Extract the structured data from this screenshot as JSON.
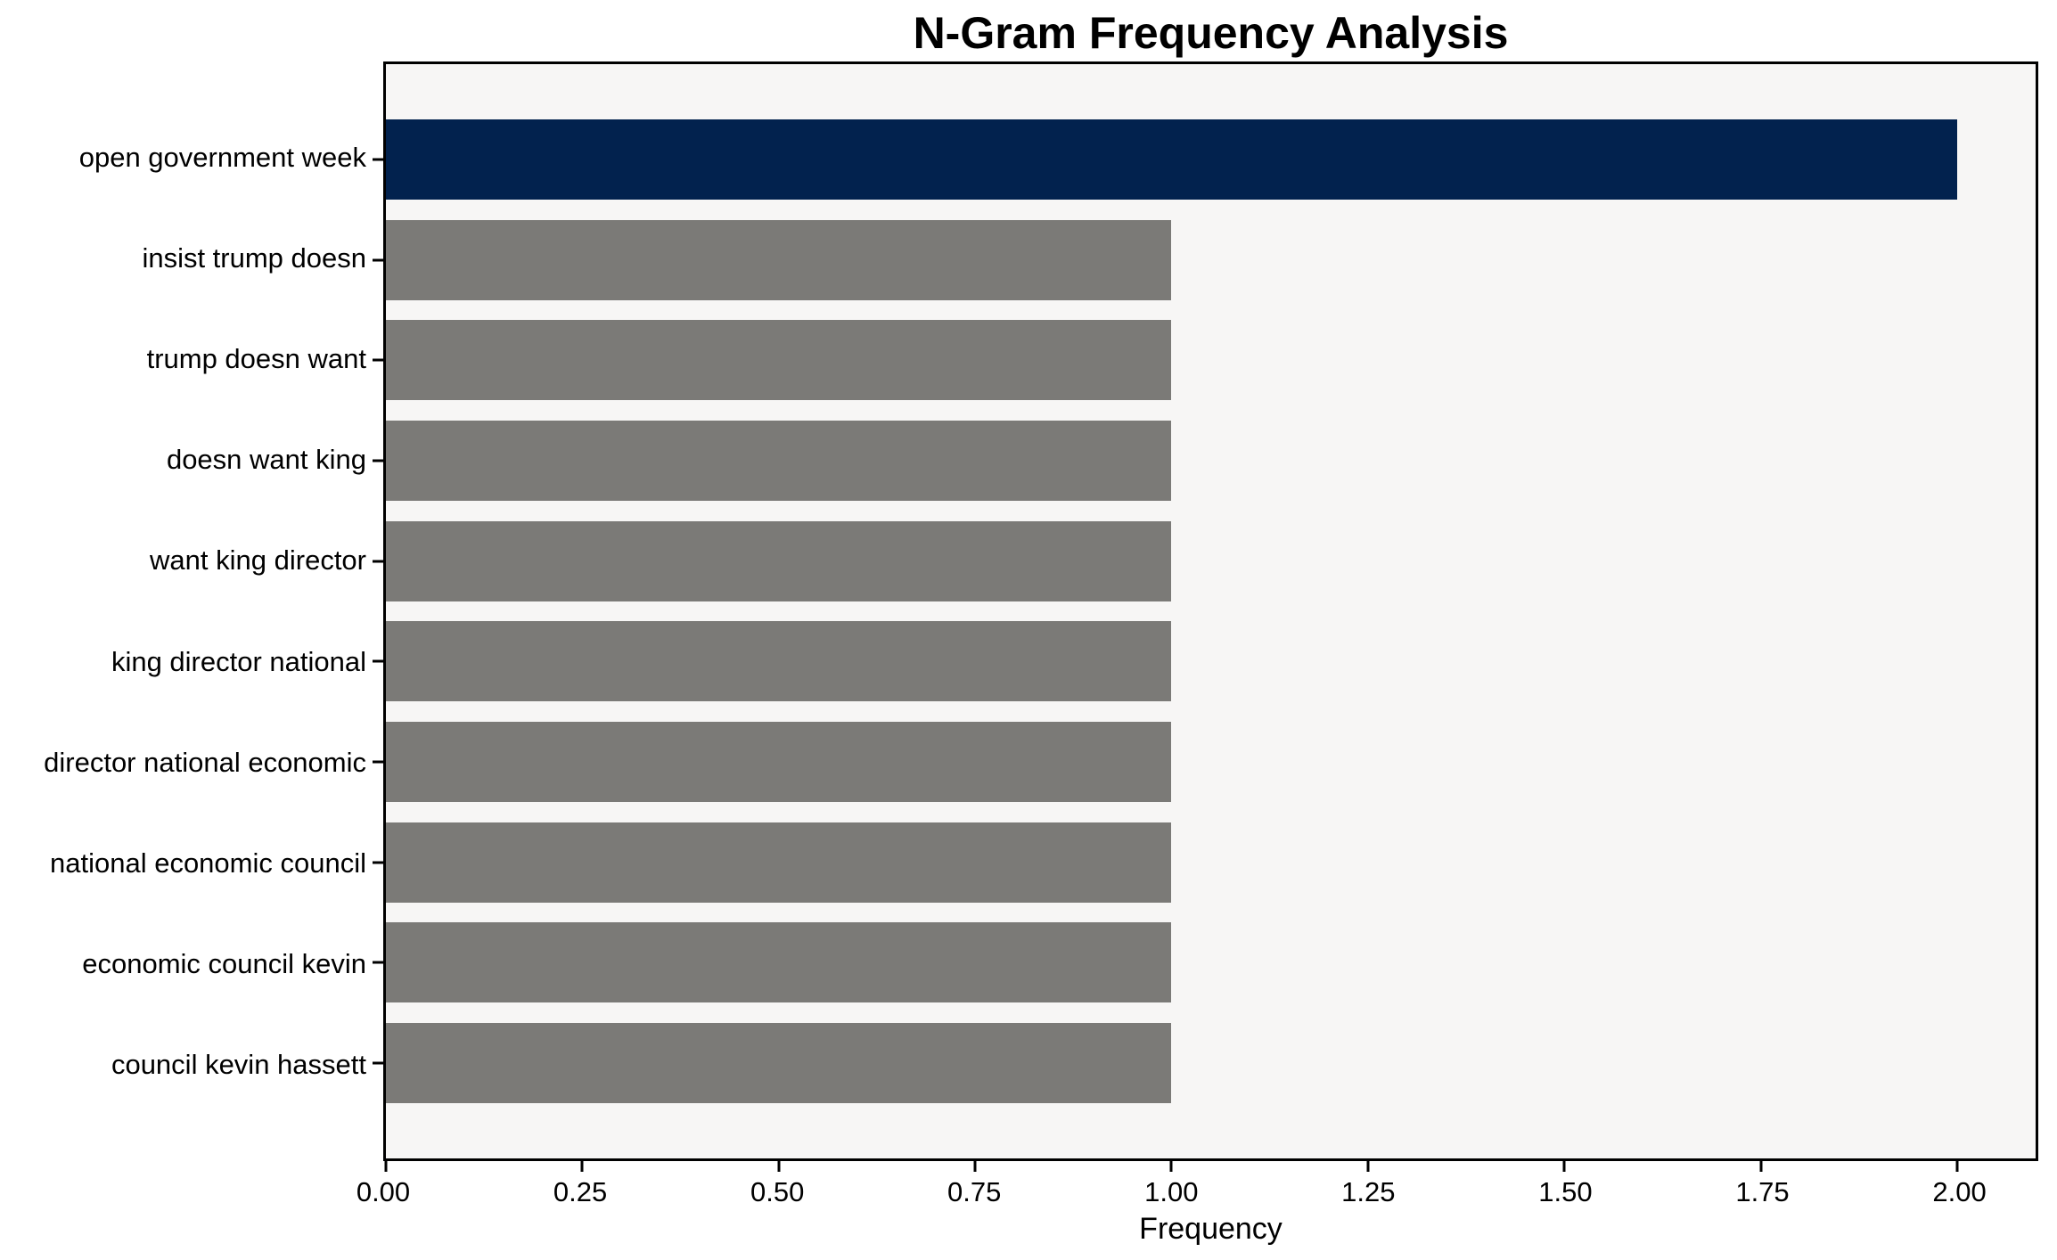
{
  "figure": {
    "background": "#ffffff",
    "plot_background": "#f7f6f5",
    "spine_color": "#000000"
  },
  "chart_data": {
    "type": "bar",
    "orientation": "horizontal",
    "title": "N-Gram Frequency Analysis",
    "xlabel": "Frequency",
    "ylabel": "",
    "categories": [
      "open government week",
      "insist trump doesn",
      "trump doesn want",
      "doesn want king",
      "want king director",
      "king director national",
      "director national economic",
      "national economic council",
      "economic council kevin",
      "council kevin hassett"
    ],
    "values": [
      2,
      1,
      1,
      1,
      1,
      1,
      1,
      1,
      1,
      1
    ],
    "bar_colors": [
      "#02224e",
      "#7b7a77",
      "#7b7a77",
      "#7b7a77",
      "#7b7a77",
      "#7b7a77",
      "#7b7a77",
      "#7b7a77",
      "#7b7a77",
      "#7b7a77"
    ],
    "highlight_color": "#02224e",
    "default_color": "#7b7a77",
    "xlim": [
      0,
      2.1
    ],
    "xtick_values": [
      0,
      0.25,
      0.5,
      0.75,
      1.0,
      1.25,
      1.5,
      1.75,
      2.0
    ],
    "xtick_labels": [
      "0.00",
      "0.25",
      "0.50",
      "0.75",
      "1.00",
      "1.25",
      "1.50",
      "1.75",
      "2.00"
    ],
    "grid": false,
    "legend_position": "none"
  }
}
